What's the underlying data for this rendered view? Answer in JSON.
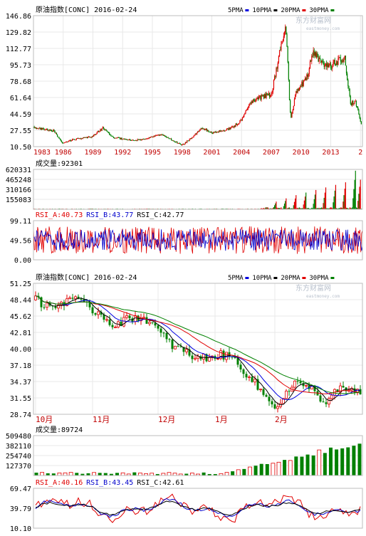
{
  "colors": {
    "up": "#e00000",
    "down": "#008000",
    "ma5": "#000000",
    "ma10": "#0000e0",
    "ma20": "#e00000",
    "ma30": "#008000",
    "rsi_a": "#e00000",
    "rsi_b": "#0000cc",
    "rsi_c": "#000000",
    "grid": "#e8e8e8",
    "frame": "#bcbcbc"
  },
  "legend": [
    {
      "label": "5PMA",
      "color": "#0000e0"
    },
    {
      "label": "10PMA",
      "color": "#000000"
    },
    {
      "label": "20PMA",
      "color": "#e00000"
    },
    {
      "label": "30PMA",
      "color": "#008000"
    }
  ],
  "watermark": {
    "title": "东方财富网",
    "url": "eastmoney.com"
  },
  "chart_data": [
    {
      "type": "candlestick",
      "title": "原油指数[CONC] 2016-02-24",
      "y_ticks": [
        "146.86",
        "129.82",
        "112.77",
        "95.73",
        "78.68",
        "61.64",
        "44.59",
        "27.55",
        "10.50"
      ],
      "ylim": [
        10.5,
        146.86
      ],
      "x_labels": [
        "1983",
        "1986",
        "1989",
        "1992",
        "1995",
        "1998",
        "2001",
        "2004",
        "2007",
        "2010",
        "2013",
        "2"
      ],
      "x_range": [
        1983,
        2016.2
      ],
      "approx_close": [
        [
          1983,
          30
        ],
        [
          1985,
          27
        ],
        [
          1986,
          14
        ],
        [
          1987,
          18
        ],
        [
          1989,
          21
        ],
        [
          1990,
          30
        ],
        [
          1991,
          20
        ],
        [
          1993,
          17
        ],
        [
          1994,
          18
        ],
        [
          1996,
          23
        ],
        [
          1998,
          12
        ],
        [
          1999,
          20
        ],
        [
          2000,
          30
        ],
        [
          2001,
          25
        ],
        [
          2002,
          27
        ],
        [
          2003,
          30
        ],
        [
          2004,
          38
        ],
        [
          2005,
          58
        ],
        [
          2006,
          62
        ],
        [
          2007,
          65
        ],
        [
          2008.45,
          138
        ],
        [
          2008.95,
          38
        ],
        [
          2009.5,
          68
        ],
        [
          2010.5,
          80
        ],
        [
          2011.3,
          110
        ],
        [
          2012,
          98
        ],
        [
          2013,
          95
        ],
        [
          2014.4,
          103
        ],
        [
          2015,
          55
        ],
        [
          2015.5,
          58
        ],
        [
          2015.8,
          45
        ],
        [
          2016.15,
          30
        ]
      ]
    },
    {
      "type": "bar",
      "title": "成交量:92301",
      "y_ticks": [
        "620331",
        "465248",
        "310166",
        "155083"
      ],
      "ylim": [
        0,
        620331
      ],
      "pattern": "low volume until ~2007, then growing periodic spikes",
      "approx_peaks": [
        [
          2007.5,
          120000
        ],
        [
          2008.5,
          170000
        ],
        [
          2009.5,
          220000
        ],
        [
          2010.5,
          260000
        ],
        [
          2011.5,
          300000
        ],
        [
          2012.5,
          340000
        ],
        [
          2013.5,
          380000
        ],
        [
          2014.5,
          420000
        ],
        [
          2015.5,
          600000
        ],
        [
          2016.0,
          460000
        ]
      ]
    },
    {
      "type": "line",
      "title": "RSI",
      "labels": [
        "RSI_A:40.73",
        "RSI_B:43.77",
        "RSI_C:42.77"
      ],
      "y_ticks": [
        "99.11",
        "49.56",
        "0.00"
      ],
      "ylim": [
        0,
        99.11
      ]
    },
    {
      "type": "candlestick",
      "title": "原油指数[CONC] 2016-02-24",
      "y_ticks": [
        "51.25",
        "48.44",
        "45.62",
        "42.81",
        "40.00",
        "37.18",
        "34.37",
        "31.55",
        "28.74"
      ],
      "ylim": [
        28.74,
        51.25
      ],
      "x_labels": [
        "10月",
        "11月",
        "12月",
        "1月",
        "2月"
      ],
      "approx_close": [
        [
          0,
          48.4
        ],
        [
          3,
          47.5
        ],
        [
          6,
          47.2
        ],
        [
          9,
          47.8
        ],
        [
          12,
          48.9
        ],
        [
          15,
          48.0
        ],
        [
          18,
          47.2
        ],
        [
          21,
          46.5
        ],
        [
          24,
          45.5
        ],
        [
          27,
          44.2
        ],
        [
          30,
          44.6
        ],
        [
          33,
          45.1
        ],
        [
          36,
          45.6
        ],
        [
          39,
          45.0
        ],
        [
          42,
          43.6
        ],
        [
          45,
          42.0
        ],
        [
          48,
          40.6
        ],
        [
          51,
          39.8
        ],
        [
          54,
          39.0
        ],
        [
          57,
          38.2
        ],
        [
          60,
          38.6
        ],
        [
          63,
          38.8
        ],
        [
          66,
          38.9
        ],
        [
          69,
          38.5
        ],
        [
          72,
          37.0
        ],
        [
          75,
          35.2
        ],
        [
          78,
          33.4
        ],
        [
          81,
          31.5
        ],
        [
          84,
          30.3
        ],
        [
          86,
          31.0
        ],
        [
          88,
          32.3
        ],
        [
          90,
          33.6
        ],
        [
          92,
          34.2
        ],
        [
          94,
          33.0
        ],
        [
          96,
          33.8
        ],
        [
          98,
          32.5
        ],
        [
          100,
          31.6
        ],
        [
          102,
          30.5
        ],
        [
          104,
          31.8
        ],
        [
          106,
          32.8
        ],
        [
          108,
          33.2
        ],
        [
          110,
          32.5
        ],
        [
          112,
          32.9
        ],
        [
          114,
          31.8
        ]
      ]
    },
    {
      "type": "bar",
      "title": "成交量:89724",
      "y_ticks": [
        "509480",
        "382110",
        "254740",
        "127370"
      ],
      "ylim": [
        0,
        509480
      ],
      "pattern": "low volume through Dec, rising steadily from Jan to Feb"
    },
    {
      "type": "line",
      "title": "RSI",
      "labels": [
        "RSI_A:40.16",
        "RSI_B:43.45",
        "RSI_C:42.61"
      ],
      "y_ticks": [
        "69.47",
        "39.79",
        "10.10"
      ],
      "ylim": [
        10.1,
        69.47
      ]
    }
  ]
}
